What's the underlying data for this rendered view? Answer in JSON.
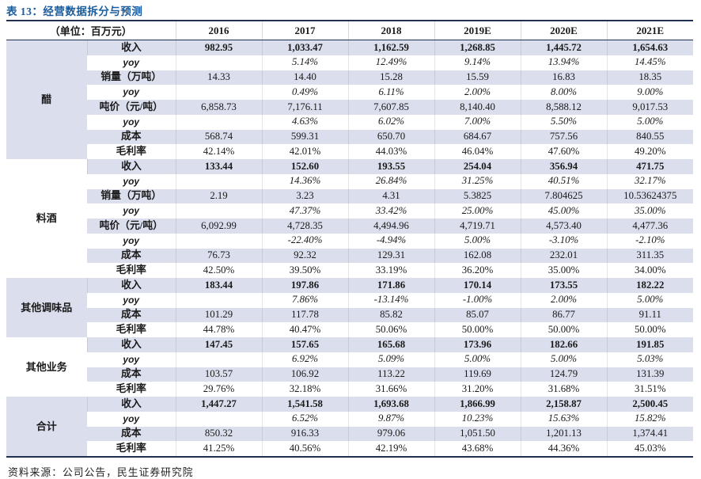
{
  "title": "表 13：经营数据拆分与预测",
  "unit_label": "（单位：百万元）",
  "columns": [
    "2016",
    "2017",
    "2018",
    "2019E",
    "2020E",
    "2021E"
  ],
  "source": "资料来源：公司公告，民生证券研究院",
  "colors": {
    "title_blue": "#1a5c9e",
    "row_shade": "#dbdfed",
    "rule_dark": "#1e2f50"
  },
  "groups": [
    {
      "name": "醋",
      "shaded": true,
      "rows": [
        {
          "label": "收入",
          "style": "revenue",
          "values": [
            "982.95",
            "1,033.47",
            "1,162.59",
            "1,268.85",
            "1,445.72",
            "1,654.63"
          ]
        },
        {
          "label": "yoy",
          "style": "yoy",
          "values": [
            "",
            "5.14%",
            "12.49%",
            "9.14%",
            "13.94%",
            "14.45%"
          ]
        },
        {
          "label": "销量（万吨）",
          "style": "normal",
          "values": [
            "14.33",
            "14.40",
            "15.28",
            "15.59",
            "16.83",
            "18.35"
          ]
        },
        {
          "label": "yoy",
          "style": "yoy",
          "values": [
            "",
            "0.49%",
            "6.11%",
            "2.00%",
            "8.00%",
            "9.00%"
          ]
        },
        {
          "label": "吨价（元/吨）",
          "style": "normal",
          "values": [
            "6,858.73",
            "7,176.11",
            "7,607.85",
            "8,140.40",
            "8,588.12",
            "9,017.53"
          ]
        },
        {
          "label": "yoy",
          "style": "yoy",
          "values": [
            "",
            "4.63%",
            "6.02%",
            "7.00%",
            "5.50%",
            "5.00%"
          ]
        },
        {
          "label": "成本",
          "style": "normal",
          "values": [
            "568.74",
            "599.31",
            "650.70",
            "684.67",
            "757.56",
            "840.55"
          ]
        },
        {
          "label": "毛利率",
          "style": "normal",
          "values": [
            "42.14%",
            "42.01%",
            "44.03%",
            "46.04%",
            "47.60%",
            "49.20%"
          ]
        }
      ]
    },
    {
      "name": "料酒",
      "shaded": false,
      "rows": [
        {
          "label": "收入",
          "style": "revenue",
          "values": [
            "133.44",
            "152.60",
            "193.55",
            "254.04",
            "356.94",
            "471.75"
          ]
        },
        {
          "label": "yoy",
          "style": "yoy",
          "values": [
            "",
            "14.36%",
            "26.84%",
            "31.25%",
            "40.51%",
            "32.17%"
          ]
        },
        {
          "label": "销量（万吨）",
          "style": "normal",
          "values": [
            "2.19",
            "3.23",
            "4.31",
            "5.3825",
            "7.804625",
            "10.53624375"
          ]
        },
        {
          "label": "yoy",
          "style": "yoy",
          "values": [
            "",
            "47.37%",
            "33.42%",
            "25.00%",
            "45.00%",
            "35.00%"
          ]
        },
        {
          "label": "吨价（元/吨）",
          "style": "normal",
          "values": [
            "6,092.99",
            "4,728.35",
            "4,494.96",
            "4,719.71",
            "4,573.40",
            "4,477.36"
          ]
        },
        {
          "label": "yoy",
          "style": "yoy",
          "values": [
            "",
            "-22.40%",
            "-4.94%",
            "5.00%",
            "-3.10%",
            "-2.10%"
          ]
        },
        {
          "label": "成本",
          "style": "normal",
          "values": [
            "76.73",
            "92.32",
            "129.31",
            "162.08",
            "232.01",
            "311.35"
          ]
        },
        {
          "label": "毛利率",
          "style": "normal",
          "values": [
            "42.50%",
            "39.50%",
            "33.19%",
            "36.20%",
            "35.00%",
            "34.00%"
          ]
        }
      ]
    },
    {
      "name": "其他调味品",
      "shaded": true,
      "rows": [
        {
          "label": "收入",
          "style": "revenue",
          "values": [
            "183.44",
            "197.86",
            "171.86",
            "170.14",
            "173.55",
            "182.22"
          ]
        },
        {
          "label": "yoy",
          "style": "yoy",
          "values": [
            "",
            "7.86%",
            "-13.14%",
            "-1.00%",
            "2.00%",
            "5.00%"
          ]
        },
        {
          "label": "成本",
          "style": "normal",
          "values": [
            "101.29",
            "117.78",
            "85.82",
            "85.07",
            "86.77",
            "91.11"
          ]
        },
        {
          "label": "毛利率",
          "style": "normal",
          "values": [
            "44.78%",
            "40.47%",
            "50.06%",
            "50.00%",
            "50.00%",
            "50.00%"
          ]
        }
      ]
    },
    {
      "name": "其他业务",
      "shaded": false,
      "rows": [
        {
          "label": "收入",
          "style": "revenue",
          "values": [
            "147.45",
            "157.65",
            "165.68",
            "173.96",
            "182.66",
            "191.85"
          ]
        },
        {
          "label": "yoy",
          "style": "yoy",
          "values": [
            "",
            "6.92%",
            "5.09%",
            "5.00%",
            "5.00%",
            "5.03%"
          ]
        },
        {
          "label": "成本",
          "style": "normal",
          "values": [
            "103.57",
            "106.92",
            "113.22",
            "119.69",
            "124.79",
            "131.39"
          ]
        },
        {
          "label": "毛利率",
          "style": "normal",
          "values": [
            "29.76%",
            "32.18%",
            "31.66%",
            "31.20%",
            "31.68%",
            "31.51%"
          ]
        }
      ]
    },
    {
      "name": "合计",
      "shaded": true,
      "rows": [
        {
          "label": "收入",
          "style": "revenue",
          "values": [
            "1,447.27",
            "1,541.58",
            "1,693.68",
            "1,866.99",
            "2,158.87",
            "2,500.45"
          ]
        },
        {
          "label": "yoy",
          "style": "yoy",
          "values": [
            "",
            "6.52%",
            "9.87%",
            "10.23%",
            "15.63%",
            "15.82%"
          ]
        },
        {
          "label": "成本",
          "style": "normal",
          "values": [
            "850.32",
            "916.33",
            "979.06",
            "1,051.50",
            "1,201.13",
            "1,374.41"
          ]
        },
        {
          "label": "毛利率",
          "style": "normal",
          "values": [
            "41.25%",
            "40.56%",
            "42.19%",
            "43.68%",
            "44.36%",
            "45.03%"
          ]
        }
      ]
    }
  ]
}
